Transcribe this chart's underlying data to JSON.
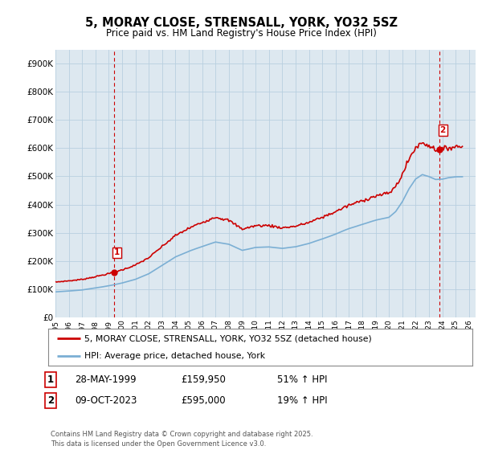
{
  "title": "5, MORAY CLOSE, STRENSALL, YORK, YO32 5SZ",
  "subtitle": "Price paid vs. HM Land Registry's House Price Index (HPI)",
  "xlim_start": 1995.0,
  "xlim_end": 2026.5,
  "ylim_min": 0,
  "ylim_max": 950000,
  "yticks": [
    0,
    100000,
    200000,
    300000,
    400000,
    500000,
    600000,
    700000,
    800000,
    900000
  ],
  "ytick_labels": [
    "£0",
    "£100K",
    "£200K",
    "£300K",
    "£400K",
    "£500K",
    "£600K",
    "£700K",
    "£800K",
    "£900K"
  ],
  "xticks": [
    1995,
    1996,
    1997,
    1998,
    1999,
    2000,
    2001,
    2002,
    2003,
    2004,
    2005,
    2006,
    2007,
    2008,
    2009,
    2010,
    2011,
    2012,
    2013,
    2014,
    2015,
    2016,
    2017,
    2018,
    2019,
    2020,
    2021,
    2022,
    2023,
    2024,
    2025,
    2026
  ],
  "hpi_color": "#7bafd4",
  "price_color": "#cc0000",
  "vline_color": "#cc0000",
  "bg_chart": "#dde8f0",
  "bg_white": "#ffffff",
  "grid_color": "#b8cfe0",
  "marker1_date": 1999.38,
  "marker1_price": 159950,
  "marker2_date": 2023.77,
  "marker2_price": 595000,
  "legend_label1": "5, MORAY CLOSE, STRENSALL, YORK, YO32 5SZ (detached house)",
  "legend_label2": "HPI: Average price, detached house, York",
  "annotation1_date": "28-MAY-1999",
  "annotation1_price": "£159,950",
  "annotation1_hpi": "51% ↑ HPI",
  "annotation2_date": "09-OCT-2023",
  "annotation2_price": "£595,000",
  "annotation2_hpi": "19% ↑ HPI",
  "footer": "Contains HM Land Registry data © Crown copyright and database right 2025.\nThis data is licensed under the Open Government Licence v3.0."
}
